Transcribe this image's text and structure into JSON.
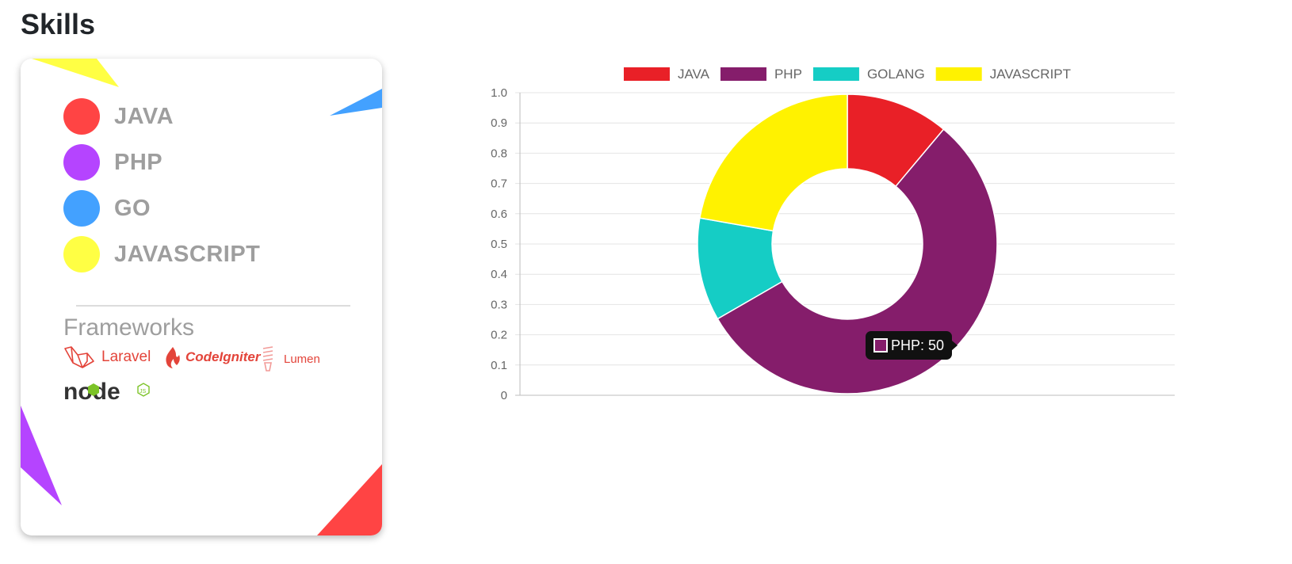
{
  "page": {
    "title": "Skills"
  },
  "skills_card": {
    "skills": [
      {
        "label": "JAVA",
        "color": "#ff4444"
      },
      {
        "label": "PHP",
        "color": "#b544ff"
      },
      {
        "label": "GO",
        "color": "#43a1ff"
      },
      {
        "label": "JAVASCRIPT",
        "color": "#ffff44"
      }
    ],
    "frameworks_title": "Frameworks",
    "frameworks": [
      {
        "name": "Laravel",
        "icon": "laravel-icon"
      },
      {
        "name": "CodeIgniter",
        "icon": "codeigniter-icon"
      },
      {
        "name": "Lumen",
        "icon": "lumen-icon"
      },
      {
        "name": "node",
        "icon": "nodejs-icon"
      }
    ]
  },
  "chart_data": {
    "type": "doughnut",
    "categories": [
      "JAVA",
      "PHP",
      "GOLANG",
      "JAVASCRIPT"
    ],
    "values": [
      10,
      50,
      10,
      20
    ],
    "colors": [
      "#e92027",
      "#851d6b",
      "#15cdc5",
      "#fff200"
    ],
    "legend": {
      "position": "top"
    },
    "y_axis": {
      "ticks": [
        "0",
        "0.1",
        "0.2",
        "0.3",
        "0.4",
        "0.5",
        "0.6",
        "0.7",
        "0.8",
        "0.9",
        "1.0"
      ],
      "range": [
        0,
        1
      ]
    },
    "grid": true
  },
  "tooltip": {
    "text": "PHP: 50",
    "color": "#851d6b"
  }
}
